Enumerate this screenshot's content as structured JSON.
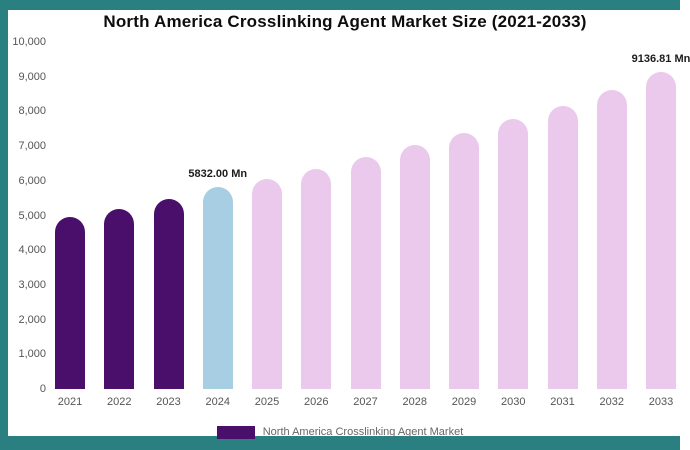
{
  "frame": {
    "color": "#2a8080"
  },
  "chart_data": {
    "type": "bar",
    "title": "North America Crosslinking Agent Market Size (2021-2033)",
    "categories": [
      "2021",
      "2022",
      "2023",
      "2024",
      "2025",
      "2026",
      "2027",
      "2028",
      "2029",
      "2030",
      "2031",
      "2032",
      "2033"
    ],
    "values": [
      4950,
      5190,
      5480,
      5832.0,
      6060,
      6350,
      6690,
      7030,
      7380,
      7770,
      8170,
      8610,
      9136.81
    ],
    "point_labels": [
      "",
      "",
      "",
      "5832.00 Mn",
      "",
      "",
      "",
      "",
      "",
      "",
      "",
      "",
      "9136.81 Mn"
    ],
    "bar_colors": [
      "#4a0e6b",
      "#4a0e6b",
      "#4a0e6b",
      "#a7cee3",
      "#eac9ec",
      "#eac9ec",
      "#eac9ec",
      "#eac9ec",
      "#eac9ec",
      "#eac9ec",
      "#eac9ec",
      "#eac9ec",
      "#eac9ec"
    ],
    "xlabel": "",
    "ylabel": "",
    "ylim": [
      0,
      10000
    ],
    "yticks": [
      {
        "value": 0,
        "label": "0"
      },
      {
        "value": 1000,
        "label": "1,000"
      },
      {
        "value": 2000,
        "label": "2,000"
      },
      {
        "value": 3000,
        "label": "3,000"
      },
      {
        "value": 4000,
        "label": "4,000"
      },
      {
        "value": 5000,
        "label": "5,000"
      },
      {
        "value": 6000,
        "label": "6,000"
      },
      {
        "value": 7000,
        "label": "7,000"
      },
      {
        "value": 8000,
        "label": "8,000"
      },
      {
        "value": 9000,
        "label": "9,000"
      },
      {
        "value": 10000,
        "label": "10,000"
      }
    ],
    "grid": false,
    "legend": {
      "position": "bottom",
      "swatch_color": "#4a0e6b",
      "label": "North America Crosslinking Agent Market"
    }
  }
}
